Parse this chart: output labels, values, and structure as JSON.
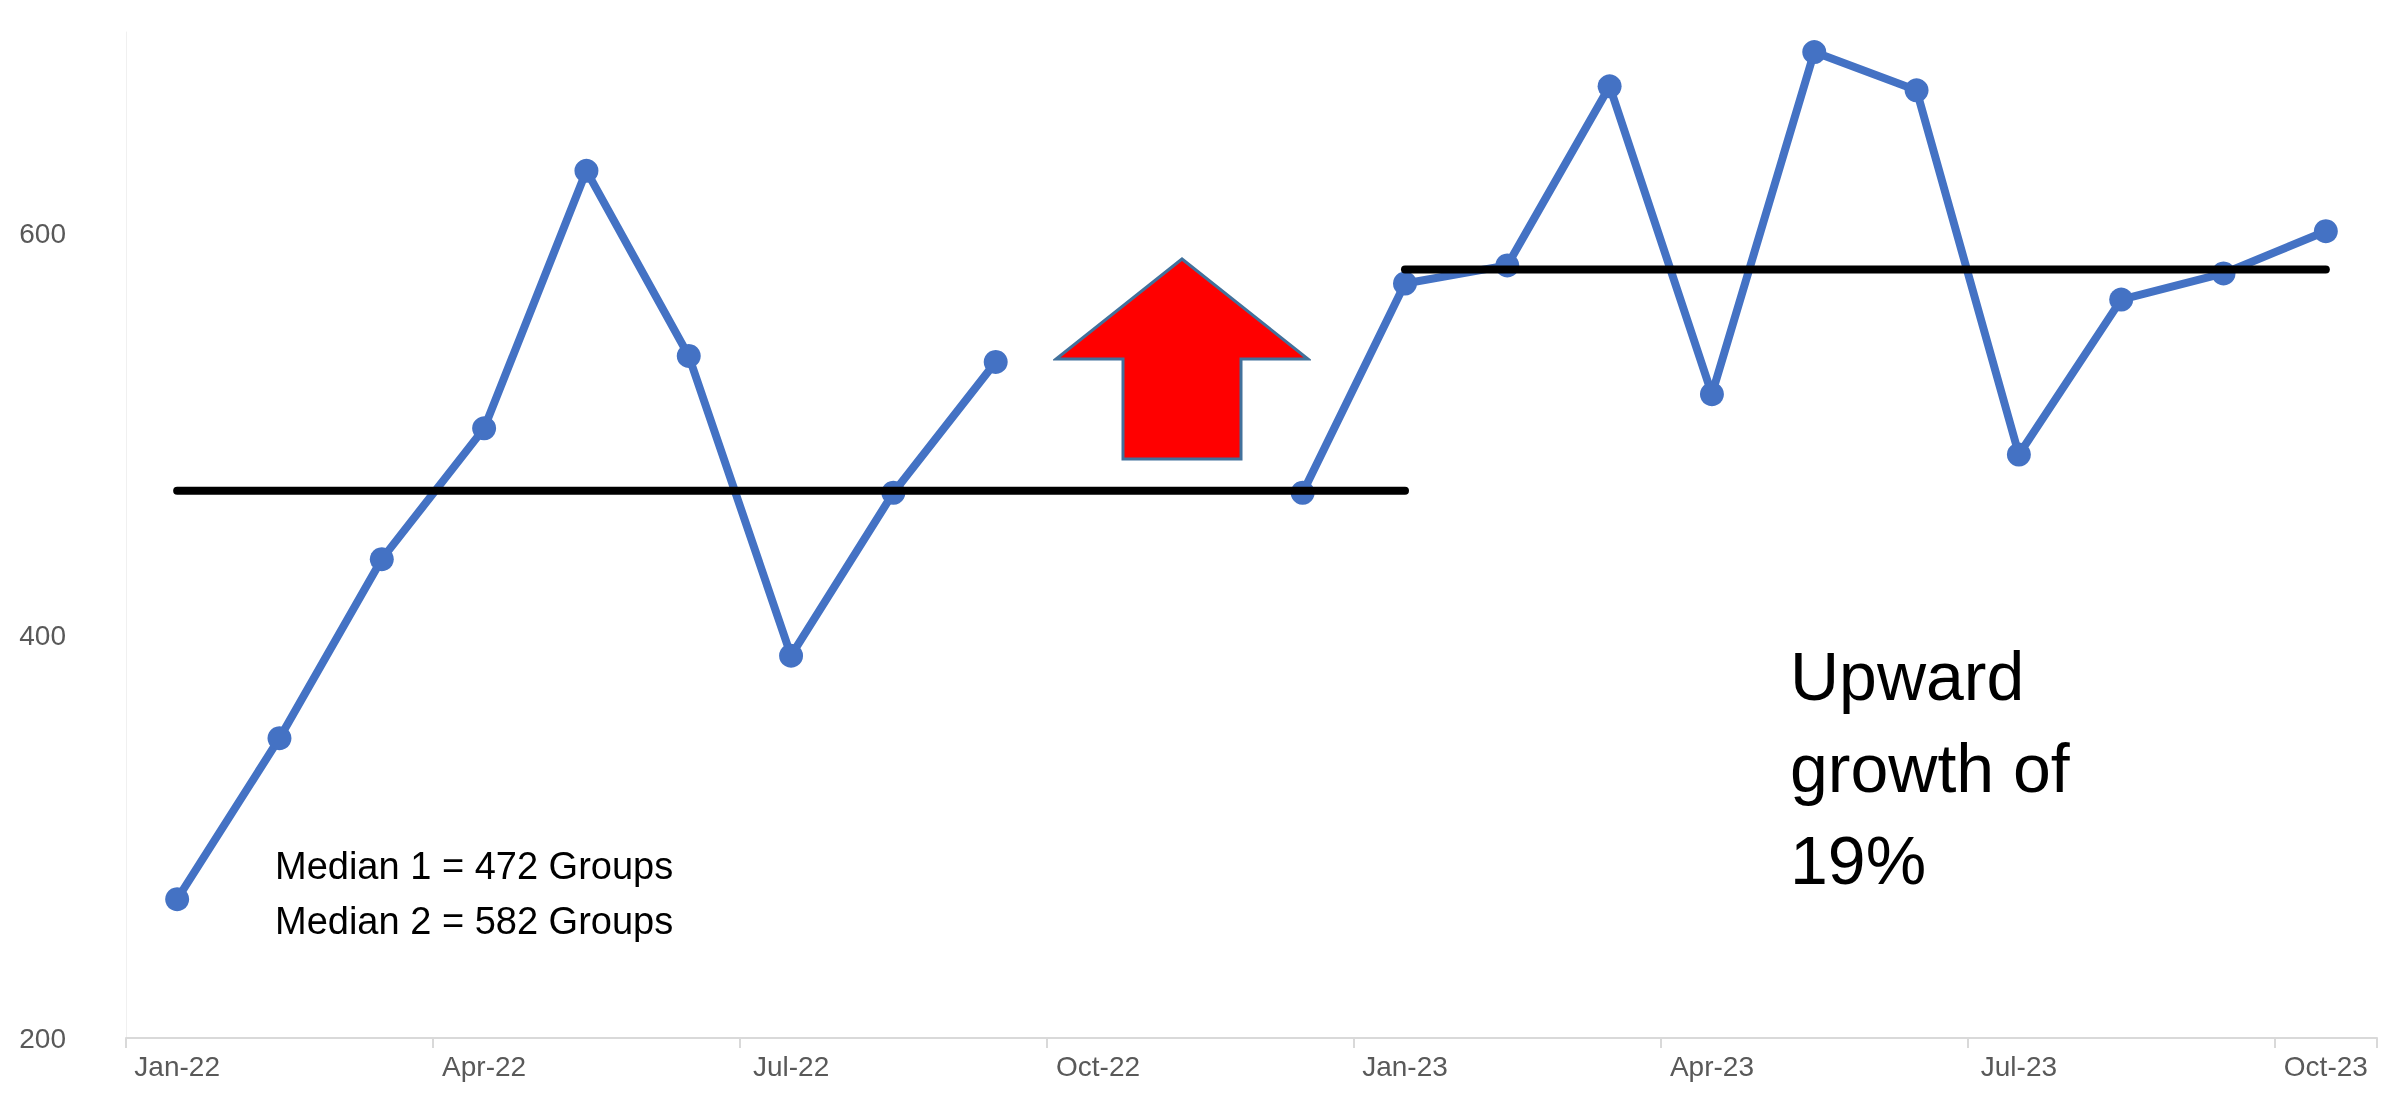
{
  "chart_data": {
    "type": "line",
    "categories": [
      "Jan-22",
      null,
      null,
      "Apr-22",
      null,
      null,
      "Jul-22",
      null,
      null,
      "Oct-22",
      null,
      null,
      "Jan-23",
      null,
      null,
      "Apr-23",
      null,
      null,
      "Jul-23",
      null,
      null,
      "Oct-23"
    ],
    "series": [
      {
        "color": "#4472c4",
        "marker": "circle",
        "values": [
          269,
          349,
          438,
          503,
          631,
          539,
          390,
          471,
          536,
          null,
          null,
          471,
          575,
          584,
          673,
          520,
          690,
          671,
          490,
          567,
          580,
          601
        ]
      },
      {
        "color": "#000000",
        "marker": "none",
        "values": [
          472,
          472,
          472,
          472,
          472,
          472,
          472,
          472,
          472,
          472,
          472,
          472,
          472,
          null,
          null,
          null,
          null,
          null,
          null,
          null,
          null,
          null
        ]
      },
      {
        "color": "#000000",
        "marker": "none",
        "values": [
          null,
          null,
          null,
          null,
          null,
          null,
          null,
          null,
          null,
          null,
          null,
          null,
          582,
          582,
          582,
          582,
          582,
          582,
          582,
          582,
          582,
          582
        ]
      }
    ],
    "ylim": [
      200,
      700
    ],
    "yticks": [
      200,
      400,
      600
    ],
    "grid": false,
    "annotations": [
      "Median 1 = 472 Groups",
      "Median 2 = 582 Groups",
      "Upward growth of 19%"
    ]
  }
}
